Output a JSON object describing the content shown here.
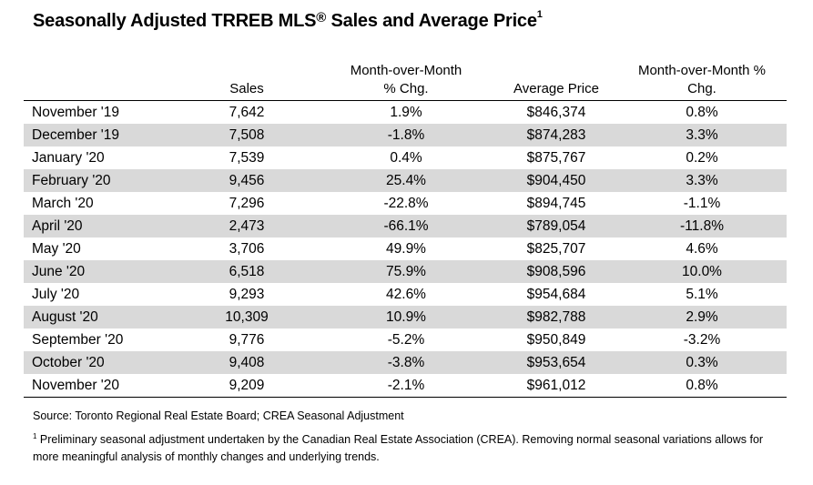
{
  "title": {
    "text": "Seasonally Adjusted TRREB MLS",
    "registered": "®",
    "suffix": " Sales and Average Price",
    "footnote_mark": "1"
  },
  "table": {
    "headers": {
      "sales": "Sales",
      "mom_sales_line1": "Month-over-Month",
      "mom_sales_line2": "% Chg.",
      "avg_price": "Average Price",
      "mom_price_line1": "Month-over-Month %",
      "mom_price_line2": "Chg."
    },
    "rows": [
      {
        "month": "November '19",
        "sales": "7,642",
        "sales_chg": "1.9%",
        "price": "$846,374",
        "price_chg": "0.8%"
      },
      {
        "month": "December '19",
        "sales": "7,508",
        "sales_chg": "-1.8%",
        "price": "$874,283",
        "price_chg": "3.3%"
      },
      {
        "month": "January '20",
        "sales": "7,539",
        "sales_chg": "0.4%",
        "price": "$875,767",
        "price_chg": "0.2%"
      },
      {
        "month": "February '20",
        "sales": "9,456",
        "sales_chg": "25.4%",
        "price": "$904,450",
        "price_chg": "3.3%"
      },
      {
        "month": "March '20",
        "sales": "7,296",
        "sales_chg": "-22.8%",
        "price": "$894,745",
        "price_chg": "-1.1%"
      },
      {
        "month": "April '20",
        "sales": "2,473",
        "sales_chg": "-66.1%",
        "price": "$789,054",
        "price_chg": "-11.8%"
      },
      {
        "month": "May '20",
        "sales": "3,706",
        "sales_chg": "49.9%",
        "price": "$825,707",
        "price_chg": "4.6%"
      },
      {
        "month": "June '20",
        "sales": "6,518",
        "sales_chg": "75.9%",
        "price": "$908,596",
        "price_chg": "10.0%"
      },
      {
        "month": "July '20",
        "sales": "9,293",
        "sales_chg": "42.6%",
        "price": "$954,684",
        "price_chg": "5.1%"
      },
      {
        "month": "August '20",
        "sales": "10,309",
        "sales_chg": "10.9%",
        "price": "$982,788",
        "price_chg": "2.9%"
      },
      {
        "month": "September '20",
        "sales": "9,776",
        "sales_chg": "-5.2%",
        "price": "$950,849",
        "price_chg": "-3.2%"
      },
      {
        "month": "October '20",
        "sales": "9,408",
        "sales_chg": "-3.8%",
        "price": "$953,654",
        "price_chg": "0.3%"
      },
      {
        "month": "November '20",
        "sales": "9,209",
        "sales_chg": "-2.1%",
        "price": "$961,012",
        "price_chg": "0.8%"
      }
    ],
    "shade_color": "#d9d9d9"
  },
  "source": "Source: Toronto Regional Real Estate Board; CREA Seasonal Adjustment",
  "footnote": {
    "mark": "1",
    "text": " Preliminary seasonal adjustment undertaken by the Canadian Real Estate Association (CREA).  Removing normal seasonal variations allows for more meaningful analysis of monthly changes and underlying trends."
  }
}
